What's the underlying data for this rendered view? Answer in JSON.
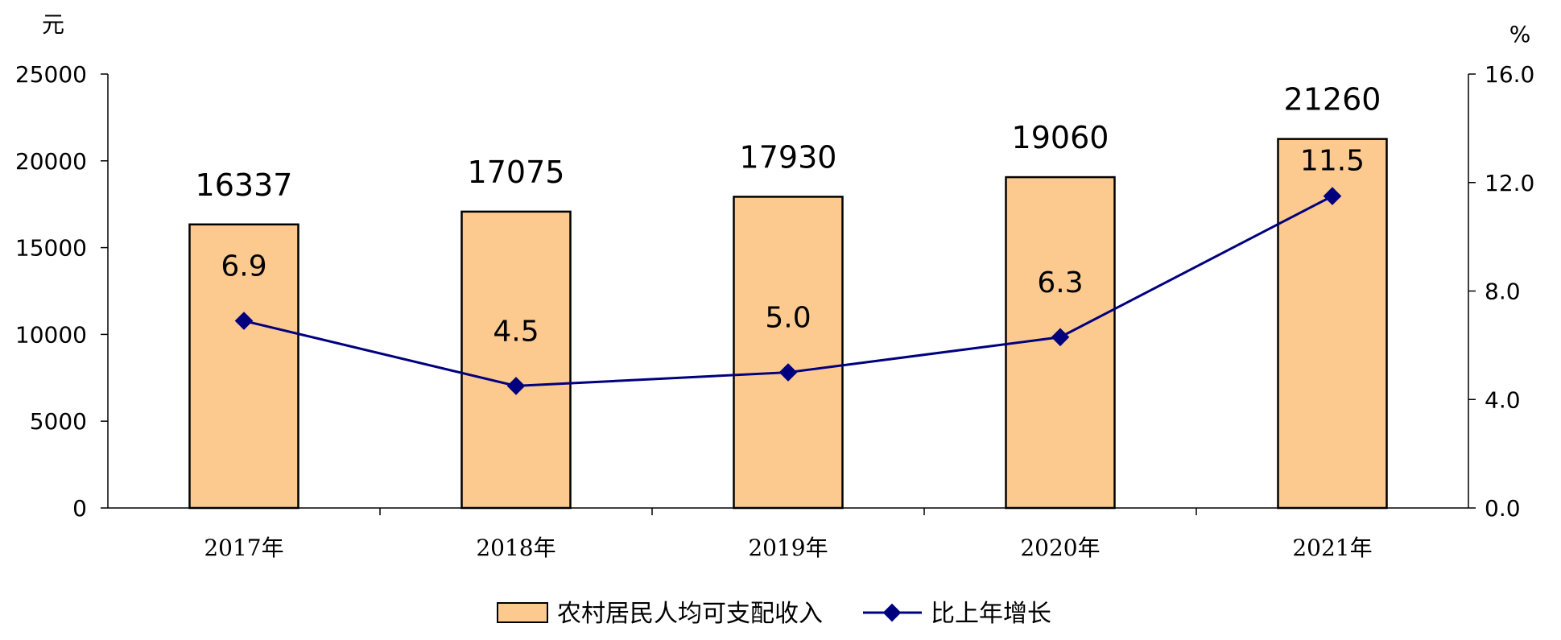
{
  "chart_data": {
    "type": "bar",
    "title": "",
    "categories": [
      "2017年",
      "2018年",
      "2019年",
      "2020年",
      "2021年"
    ],
    "series": [
      {
        "name": "农村居民人均可支配收入",
        "type": "bar",
        "axis": "left",
        "values": [
          16337,
          17075,
          17930,
          19060,
          21260
        ],
        "color": "#FCC98F"
      },
      {
        "name": "比上年增长",
        "type": "line",
        "axis": "right",
        "values": [
          6.9,
          4.5,
          5.0,
          6.3,
          11.5
        ],
        "color": "#00007F"
      }
    ],
    "left_axis": {
      "unit": "元",
      "ylim": [
        0,
        25000
      ],
      "ticks": [
        "0",
        "5000",
        "10000",
        "15000",
        "20000",
        "25000"
      ]
    },
    "right_axis": {
      "unit": "%",
      "ylim": [
        0,
        16
      ],
      "ticks": [
        "0.0",
        "4.0",
        "8.0",
        "12.0",
        "16.0"
      ]
    },
    "bar_labels": [
      "16337",
      "17075",
      "17930",
      "19060",
      "21260"
    ],
    "line_labels": [
      "6.9",
      "4.5",
      "5.0",
      "6.3",
      "11.5"
    ],
    "grid": false,
    "legend_position": "bottom-center"
  }
}
